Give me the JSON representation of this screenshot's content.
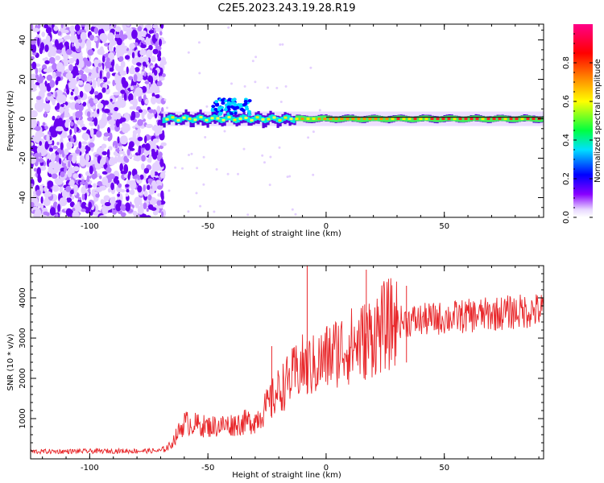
{
  "title": "C2E5.2023.243.19.28.R19",
  "colors": {
    "snr_line": "#e8272a",
    "noise_purple": "#6a00f0",
    "colorbar_stops": [
      "#8800ff",
      "#0000ff",
      "#00e0ff",
      "#00ff40",
      "#ffff00",
      "#ff8800",
      "#ff0000",
      "#ff0088"
    ]
  },
  "chart_data": [
    {
      "type": "heatmap",
      "name": "spectrogram",
      "xlabel": "Height of straight line (km)",
      "ylabel": "Frequency (Hz)",
      "xlim": [
        -125,
        92
      ],
      "ylim": [
        -50,
        48
      ],
      "x_ticks": [
        -100,
        -50,
        0,
        50
      ],
      "y_ticks": [
        -40,
        -20,
        0,
        20,
        40
      ],
      "noise_region_x": [
        -125,
        -70
      ],
      "signal_start_x": -70,
      "signal_freq_hz": 0,
      "colorbar": {
        "label": "Normalized spectral amplitude",
        "range": [
          0.0,
          1.0
        ],
        "ticks": [
          0.0,
          0.2,
          0.4,
          0.6,
          0.8
        ]
      }
    },
    {
      "type": "line",
      "name": "snr",
      "xlabel": "Height of straight line (km)",
      "ylabel": "SNR (10 * v/v)",
      "xlim": [
        -125,
        92
      ],
      "ylim": [
        0,
        4800
      ],
      "x_ticks": [
        -100,
        -50,
        0,
        50
      ],
      "y_ticks": [
        1000,
        2000,
        3000,
        4000
      ],
      "trend": {
        "x": [
          -125,
          -70,
          -66,
          -60,
          -50,
          -40,
          -30,
          -25,
          -20,
          -15,
          -10,
          -5,
          0,
          5,
          10,
          15,
          20,
          25,
          30,
          40,
          50,
          60,
          70,
          80,
          92
        ],
        "y": [
          180,
          200,
          320,
          900,
          800,
          850,
          950,
          1300,
          1700,
          2000,
          2300,
          2300,
          2500,
          2700,
          2800,
          2900,
          3100,
          3300,
          3400,
          3450,
          3500,
          3550,
          3600,
          3650,
          3700
        ]
      },
      "spikes": [
        {
          "x": -8,
          "y": 4800
        },
        {
          "x": 17,
          "y": 4700
        },
        {
          "x": -23,
          "y": 2800
        },
        {
          "x": 34,
          "y": 4300
        }
      ]
    }
  ]
}
